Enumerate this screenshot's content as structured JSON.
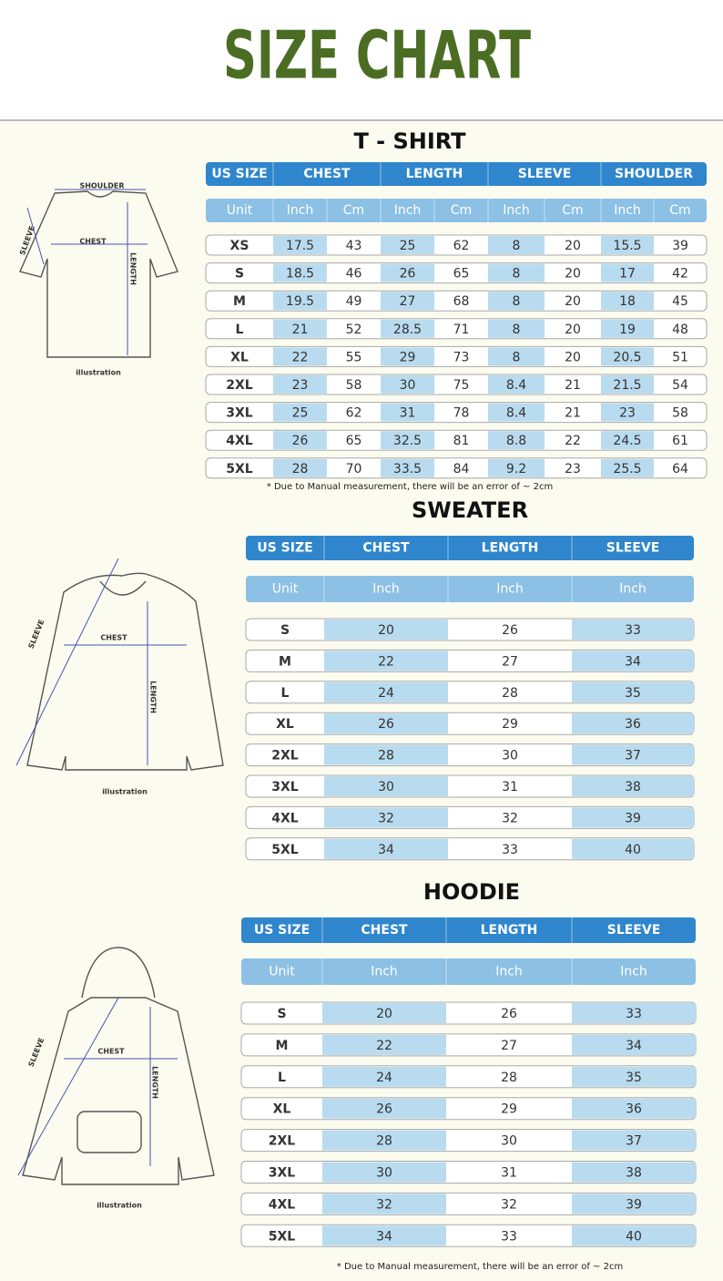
{
  "title": "SIZE CHART",
  "tshirt": {
    "title": "T - SHIRT",
    "headers": [
      "US SIZE",
      "CHEST",
      "LENGTH",
      "SLEEVE",
      "SHOULDER"
    ],
    "unit_row": [
      "Unit",
      "Inch",
      "Cm",
      "Inch",
      "Cm",
      "Inch",
      "Cm",
      "Inch",
      "Cm"
    ],
    "rows": [
      [
        "XS",
        17.5,
        43,
        25,
        62,
        8,
        20,
        15.5,
        39
      ],
      [
        "S",
        18.5,
        46,
        26,
        65,
        8,
        20,
        17,
        42
      ],
      [
        "M",
        19.5,
        49,
        27,
        68,
        8,
        20,
        18,
        45
      ],
      [
        "L",
        21,
        52,
        28.5,
        71,
        8,
        20,
        19,
        48
      ],
      [
        "XL",
        22,
        55,
        29,
        73,
        8,
        20,
        20.5,
        51
      ],
      [
        "2XL",
        23,
        58,
        30,
        75,
        8.4,
        21,
        21.5,
        54
      ],
      [
        "3XL",
        25,
        62,
        31,
        78,
        8.4,
        21,
        23,
        58
      ],
      [
        "4XL",
        26,
        65,
        32.5,
        81,
        8.8,
        22,
        24.5,
        61
      ],
      [
        "5XL",
        28,
        70,
        33.5,
        84,
        9.2,
        23,
        25.5,
        64
      ]
    ],
    "note": "* Due to Manual measurement, there will be an error of ~ 2cm",
    "illustration": {
      "shoulder": "SHOULDER",
      "sleeve": "SLEEVE",
      "chest": "CHEST",
      "length": "LENGTH",
      "caption": "illustration"
    }
  },
  "sweater": {
    "title": "SWEATER",
    "headers": [
      "US SIZE",
      "CHEST",
      "LENGTH",
      "SLEEVE"
    ],
    "unit_row": [
      "Unit",
      "Inch",
      "Inch",
      "Inch"
    ],
    "rows": [
      [
        "S",
        20,
        26,
        33
      ],
      [
        "M",
        22,
        27,
        34
      ],
      [
        "L",
        24,
        28,
        35
      ],
      [
        "XL",
        26,
        29,
        36
      ],
      [
        "2XL",
        28,
        30,
        37
      ],
      [
        "3XL",
        30,
        31,
        38
      ],
      [
        "4XL",
        32,
        32,
        39
      ],
      [
        "5XL",
        34,
        33,
        40
      ]
    ],
    "illustration": {
      "sleeve": "SLEEVE",
      "chest": "CHEST",
      "length": "LENGTH",
      "caption": "illustration"
    }
  },
  "hoodie": {
    "title": "HOODIE",
    "headers": [
      "US SIZE",
      "CHEST",
      "LENGTH",
      "SLEEVE"
    ],
    "unit_row": [
      "Unit",
      "Inch",
      "Inch",
      "Inch"
    ],
    "rows": [
      [
        "S",
        20,
        26,
        33
      ],
      [
        "M",
        22,
        27,
        34
      ],
      [
        "L",
        24,
        28,
        35
      ],
      [
        "XL",
        26,
        29,
        36
      ],
      [
        "2XL",
        28,
        30,
        37
      ],
      [
        "3XL",
        30,
        31,
        38
      ],
      [
        "4XL",
        32,
        32,
        39
      ],
      [
        "5XL",
        34,
        33,
        40
      ]
    ],
    "note": "* Due to Manual measurement, there will be an error of ~ 2cm",
    "illustration": {
      "sleeve": "SLEEVE",
      "chest": "CHEST",
      "length": "LENGTH",
      "caption": "illustration"
    }
  }
}
